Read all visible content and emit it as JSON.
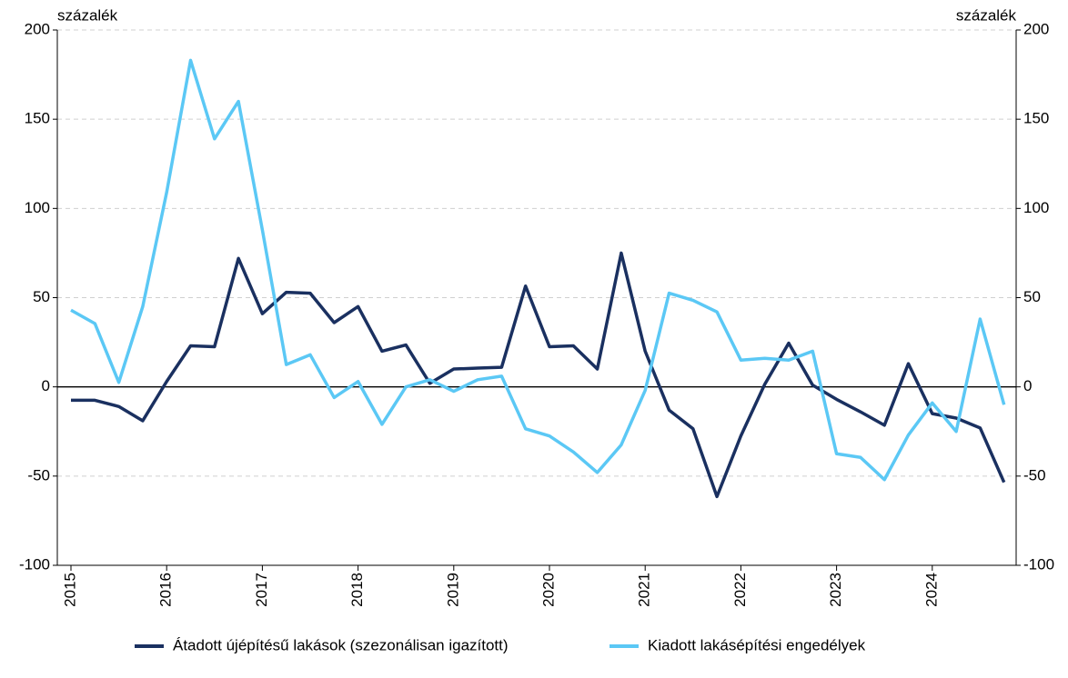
{
  "chart_data": {
    "type": "line",
    "ylabel": "százalék",
    "y2label": "százalék",
    "categories": [
      "2015",
      null,
      null,
      null,
      "2016",
      null,
      null,
      null,
      "2017",
      null,
      null,
      null,
      "2018",
      null,
      null,
      null,
      "2019",
      null,
      null,
      null,
      "2020",
      null,
      null,
      null,
      "2021",
      null,
      null,
      null,
      "2022",
      null,
      null,
      null,
      "2023",
      null,
      null,
      null,
      "2024",
      null,
      null,
      null
    ],
    "series": [
      {
        "name": "Átadott újépítésű lakások (szezonálisan igazított)",
        "color": "#1a3060",
        "values": [
          -7.5,
          -7.5,
          -11,
          -19,
          3,
          23,
          22.5,
          72,
          41,
          53,
          52.5,
          36,
          45,
          20,
          23.5,
          2,
          10,
          10.5,
          11,
          56.5,
          22.5,
          23,
          10,
          75,
          20,
          -13,
          -23.5,
          -61.5,
          -27.5,
          1.5,
          24.5,
          1,
          -7,
          -14,
          -21.5,
          13,
          -15,
          -17.5,
          -23,
          -53.5
        ]
      },
      {
        "name": "Kiadott lakásépítési engedélyek",
        "color": "#5bc8f5",
        "values": [
          43,
          35.5,
          2.5,
          45,
          109,
          183,
          139,
          160,
          88,
          12.5,
          18,
          -6,
          3,
          -21,
          0,
          4,
          -2.5,
          4,
          6,
          -23.5,
          -27.5,
          -36.5,
          -48,
          -32.5,
          -2,
          52.5,
          48.5,
          42,
          15,
          16,
          15,
          20,
          -37.5,
          -39.5,
          -52,
          -27,
          -9,
          -25,
          38,
          -10
        ]
      }
    ],
    "ylim": [
      -100,
      200
    ],
    "yticks": [
      -100,
      -50,
      0,
      50,
      100,
      150,
      200
    ],
    "y2lim": [
      -100,
      200
    ],
    "y2ticks": [
      -100,
      -50,
      0,
      50,
      100,
      150,
      200
    ],
    "grid": true
  }
}
